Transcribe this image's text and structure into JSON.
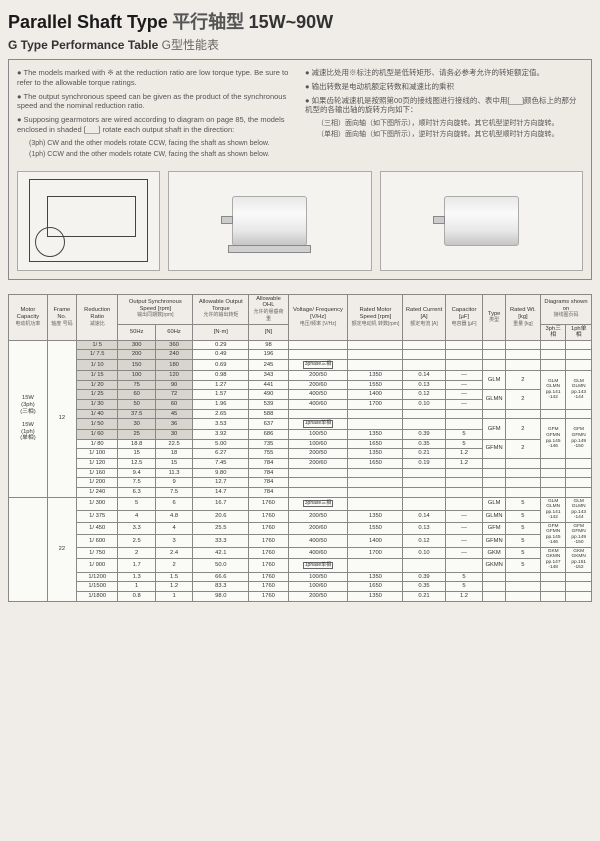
{
  "header": {
    "title_en": "Parallel Shaft Type",
    "title_cn": "平行轴型",
    "title_range": "15W~90W",
    "subtitle_en": "G Type Performance Table",
    "subtitle_cn": "G型性能表"
  },
  "notes": {
    "left": [
      "The models marked with ※ at the reduction ratio are low torque type. Be sure to refer to the allowable torque ratings.",
      "The output synchronous speed can be given as the product of the synchronous speed and the nominal reduction ratio.",
      "Supposing gearmotors are wired according to diagram on page 85, the models enclosed in shaded [___] rotate each output shaft in the direction:"
    ],
    "left_sub": [
      "(3ph) CW and the other models rotate CCW, facing the shaft as shown below.",
      "(1ph) CCW and the other models rotate CW, facing the shaft as shown below."
    ],
    "right": [
      "减速比处用※标注的机型是低转矩形、请务必参考允许的转矩额定值。",
      "输出转数是电动机额定转数和减速比的乘积",
      "如果齿轮减速机是按照第00页的接线图进行接线的、表中用[___]颜色标上的那分机型的各输出轴的旋转方向如下："
    ],
    "right_sub": [
      "（三相）面向轴（如下图所示），顺时针方向旋转。其它机型逆时针方向旋转。",
      "（单相）面向轴（如下图所示），逆时针方向旋转。其它机型顺时针方向旋转。"
    ]
  },
  "images": {
    "diag": "line-diagram",
    "photo1": "motor-photo-foot",
    "photo2": "motor-photo-flange"
  },
  "thead": {
    "c1": "Motor\nCapacity",
    "c1cn": "电动机功率",
    "c2": "Frame\nNo.",
    "c2cn": "轴度\n号码",
    "c3": "Reduction\nRatio",
    "c3cn": "减速比",
    "c4": "Output Synchronous\nSpeed [rpm]",
    "c4cn": "输出同期数[rpm]",
    "c4a": "50Hz",
    "c4b": "60Hz",
    "c5": "Allowable\nOutput Torque",
    "c5cn": "允许的输出转矩",
    "c5u": "[N·m]",
    "c6": "Allowable\nOHL",
    "c6cn": "允许的悬垂荷重",
    "c6u": "[N]",
    "c7": "Voltage/\nFrequency\n[V/Hz]",
    "c7cn": "电压/频率\n[V/Hz]",
    "c8": "Rated Motor\nSpeed\n[rpm]",
    "c8cn": "额定电动机\n转数[rpm]",
    "c9": "Rated\nCurrent\n[A]",
    "c9cn": "额定电流\n[A]",
    "c10": "Capacitor\n[µF]",
    "c10cn": "电容器\n[µF]",
    "c11": "Type",
    "c11cn": "类型",
    "c12": "Rated Wt.\n[kg]",
    "c12cn": "重量\n[kg]",
    "c13": "Diagrams\nshown on",
    "c13cn": "接线图页码",
    "c13a": "3ph三相",
    "c13b": "1ph单相"
  },
  "motor_caps": {
    "a": "15W\n(3ph)\n(三相)",
    "b": "15W\n(1ph)\n(单相)"
  },
  "frames": {
    "f1": "12",
    "f2": "22"
  },
  "ratios1": [
    "1/ 5",
    "1/ 7.5",
    "1/ 10",
    "1/ 15",
    "1/ 20",
    "1/ 25",
    "1/ 30",
    "1/ 40",
    "1/ 50",
    "1/ 60",
    "1/ 80",
    "1/ 100",
    "1/ 120",
    "1/ 160",
    "1/ 200",
    "1/ 240"
  ],
  "s50_1": [
    "300",
    "200",
    "150",
    "100",
    "75",
    "60",
    "50",
    "37.5",
    "30",
    "25",
    "18.8",
    "15",
    "12.5",
    "9.4",
    "7.5",
    "6.3"
  ],
  "s60_1": [
    "360",
    "240",
    "180",
    "120",
    "90",
    "72",
    "60",
    "45",
    "36",
    "30",
    "22.5",
    "18",
    "15",
    "11.3",
    "9",
    "7.5"
  ],
  "tq1": [
    "0.29",
    "0.49",
    "0.69",
    "0.98",
    "1.27",
    "1.57",
    "1.96",
    "2.65",
    "3.53",
    "3.92",
    "5.00",
    "6.27",
    "7.45",
    "9.80",
    "12.7",
    "14.7"
  ],
  "ohl1": [
    "98",
    "196",
    "245",
    "343",
    "441",
    "490",
    "539",
    "588",
    "637",
    "686",
    "735",
    "755",
    "784",
    "784",
    "784",
    "784"
  ],
  "ratios2": [
    "1/ 300",
    "1/ 375",
    "1/ 450",
    "1/ 600",
    "1/ 750",
    "1/ 900",
    "1/1200",
    "1/1500",
    "1/1800"
  ],
  "s50_2": [
    "5",
    "4",
    "3.3",
    "2.5",
    "2",
    "1.7",
    "1.3",
    "1",
    "0.8"
  ],
  "s60_2": [
    "6",
    "4.8",
    "4",
    "3",
    "2.4",
    "2",
    "1.5",
    "1.2",
    "1"
  ],
  "tq2": [
    "16.7",
    "20.6",
    "25.5",
    "33.3",
    "42.1",
    "50.0",
    "66.6",
    "83.3",
    "98.0"
  ],
  "ohl2": [
    "1760",
    "1760",
    "1760",
    "1760",
    "1760",
    "1760",
    "1760",
    "1760",
    "1760"
  ],
  "spec_block1": {
    "label3ph": "3phase三相",
    "vf": [
      "200/50",
      "200/60",
      "400/50",
      "400/60"
    ],
    "rpm": [
      "1350",
      "1550",
      "1400",
      "1700"
    ],
    "amp": [
      "0.14",
      "0.13",
      "0.12",
      "0.10"
    ],
    "cap": [
      "—",
      "—",
      "—",
      "—"
    ],
    "label1ph": "1phase单相",
    "vf2": [
      "100/50",
      "100/60",
      "200/50",
      "200/60"
    ],
    "rpm2": [
      "1350",
      "1650",
      "1350",
      "1650"
    ],
    "amp2": [
      "0.39",
      "0.35",
      "0.21",
      "0.19"
    ],
    "cap2": [
      "5",
      "5",
      "1.2",
      "1.2"
    ]
  },
  "types1": {
    "t1": "GLM",
    "w1": "2",
    "d1a": "GLM\nGLMN\npp.141\n-142",
    "d1b": "GLM\nGLMN\npp.143\n-144",
    "t2": "GLMN",
    "w2": "2",
    "t3": "GFM",
    "w3": "2",
    "d3a": "GFM\nGFMN\npp.145\n-146",
    "d3b": "GFM\nGFMN\npp.149\n-150",
    "t4": "GFMN",
    "w4": "2"
  },
  "types2": {
    "t1": "GLM",
    "w1": "5",
    "d1a": "GLM\nGLMN\npp.141\n-142",
    "d1b": "GLM\nGLMN\npp.143\n-144",
    "t2": "GLMN",
    "w2": "5",
    "t3": "GFM",
    "w3": "5",
    "d3a": "GFM\nGFMN\npp.145\n-146",
    "d3b": "GFM\nGFMN\npp.149\n-150",
    "t4": "GFMN",
    "w4": "5",
    "t5": "GKM",
    "w5": "5",
    "d5a": "GKM\nGKMN\npp.147\n-148",
    "d5b": "GKM\nGKMN\npp.151\n-152",
    "t6": "GKMN",
    "w6": "5"
  },
  "colors": {
    "page_bg": "#f0ede8",
    "border": "#888888",
    "highlight": "#d8d5ce",
    "text": "#333333"
  }
}
